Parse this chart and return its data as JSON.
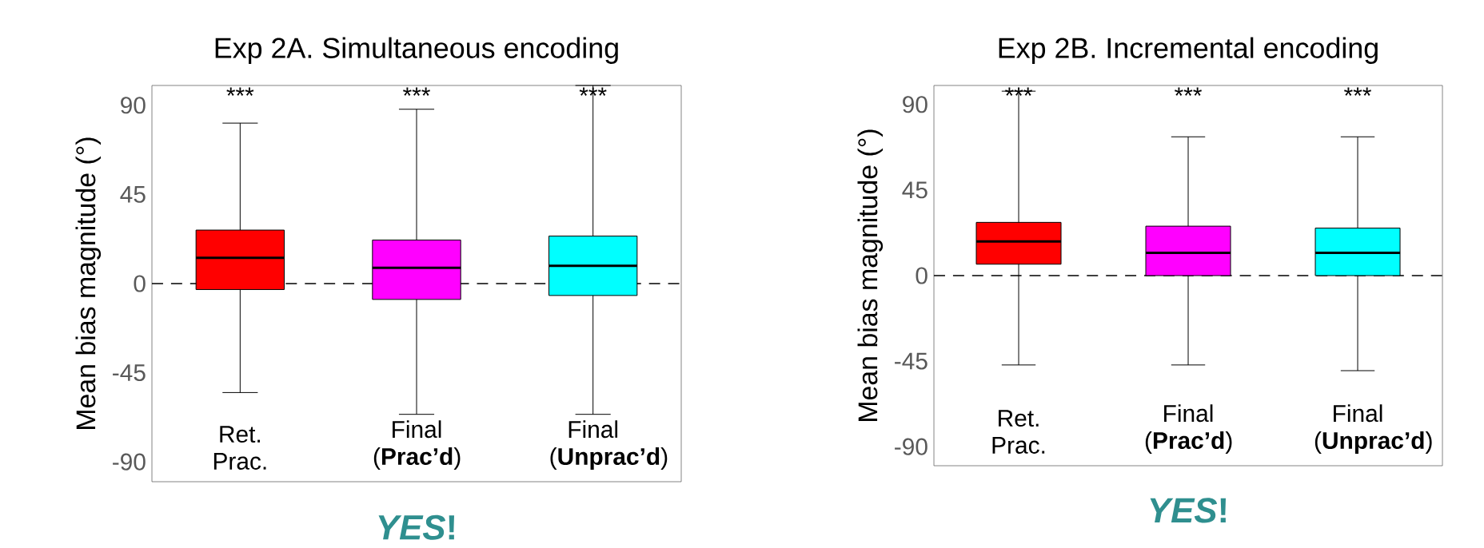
{
  "chart_data": [
    {
      "type": "box",
      "title": "Exp 2A. Simultaneous encoding",
      "ylabel": "Mean bias magnitude (°)",
      "categories": [
        "Ret. Prac.",
        "Final (**Prac’d**)",
        "Final (**Unprac’d**)"
      ],
      "colors": [
        "#ff0000",
        "#ff00ff",
        "#00ffff"
      ],
      "boxes": [
        {
          "low": -55,
          "q1": -3,
          "median": 13,
          "q3": 27,
          "high": 81
        },
        {
          "low": -66,
          "q1": -8,
          "median": 8,
          "q3": 22,
          "high": 88
        },
        {
          "low": -66,
          "q1": -6,
          "median": 9,
          "q3": 24,
          "high": 100
        }
      ],
      "ylim": [
        -100,
        100
      ],
      "yticks": [
        -90,
        -45,
        0,
        45,
        90
      ],
      "ref_lines": [
        {
          "axis": "y",
          "value": 0,
          "line_style": "dashed",
          "color": "#000000"
        }
      ],
      "annotations": [
        "***",
        "***",
        "***",
        "*YES*!"
      ]
    },
    {
      "type": "box",
      "title": "Exp 2B. Incremental encoding",
      "ylabel": "Mean bias magnitude (°)",
      "categories": [
        "Ret. Prac.",
        "Final (**Prac’d**)",
        "Final (**Unprac’d**)"
      ],
      "colors": [
        "#ff0000",
        "#ff00ff",
        "#00ffff"
      ],
      "boxes": [
        {
          "low": -47,
          "q1": 6,
          "median": 18,
          "q3": 28,
          "high": 97
        },
        {
          "low": -47,
          "q1": 0,
          "median": 12,
          "q3": 26,
          "high": 73
        },
        {
          "low": -50,
          "q1": 0,
          "median": 12,
          "q3": 25,
          "high": 73
        }
      ],
      "ylim": [
        -100,
        100
      ],
      "yticks": [
        -90,
        -45,
        0,
        45,
        90
      ],
      "ref_lines": [
        {
          "axis": "y",
          "value": 0,
          "line_style": "dashed",
          "color": "#000000"
        }
      ],
      "annotations": [
        "***",
        "***",
        "***",
        "*YES*!"
      ]
    }
  ]
}
